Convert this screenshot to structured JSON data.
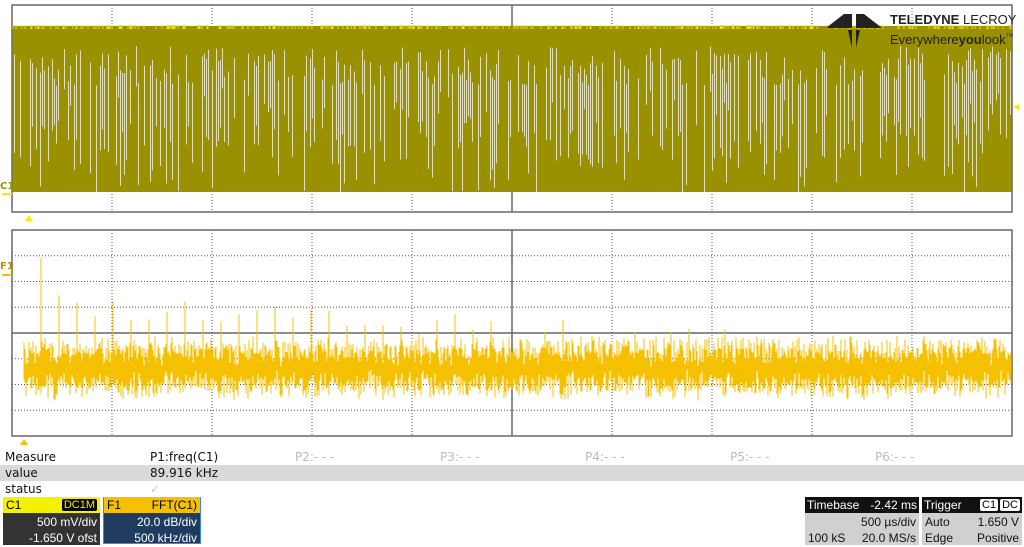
{
  "logo": {
    "brand_bold": "TELEDYNE",
    "brand_light": "LECROY",
    "tagline_a": "Everywhere",
    "tagline_b": "you",
    "tagline_c": "look",
    "tm": "™"
  },
  "traces": {
    "c1_label": "C1",
    "f1_label": "F1",
    "c1_color": "#999100",
    "c1_peak_color": "#e8e000",
    "f1_color": "#f5c000"
  },
  "measure": {
    "header_label": "Measure",
    "value_label": "value",
    "status_label": "status",
    "params": [
      {
        "name": "P1:freq(C1)",
        "value": "89.916 kHz",
        "status": "✓"
      },
      {
        "name": "P2:- - -"
      },
      {
        "name": "P3:- - -"
      },
      {
        "name": "P4:- - -"
      },
      {
        "name": "P5:- - -"
      },
      {
        "name": "P6:- - -"
      }
    ]
  },
  "c1": {
    "label": "C1",
    "coupling": "DC1M",
    "vdiv": "500 mV/div",
    "offset": "-1.650 V ofst",
    "color": "#f5f000"
  },
  "f1": {
    "label": "F1",
    "function": "FFT(C1)",
    "vdiv": "20.0 dB/div",
    "hdiv": "500 kHz/div",
    "color": "#f5c000"
  },
  "timebase": {
    "label": "Timebase",
    "delay": "-2.42 ms",
    "tdiv": "500 µs/div",
    "samples": "100 kS",
    "rate": "20.0 MS/s"
  },
  "trigger": {
    "label": "Trigger",
    "source": "C1",
    "coupling": "DC",
    "mode": "Auto",
    "level": "1.650 V",
    "type": "Edge",
    "slope": "Positive"
  }
}
